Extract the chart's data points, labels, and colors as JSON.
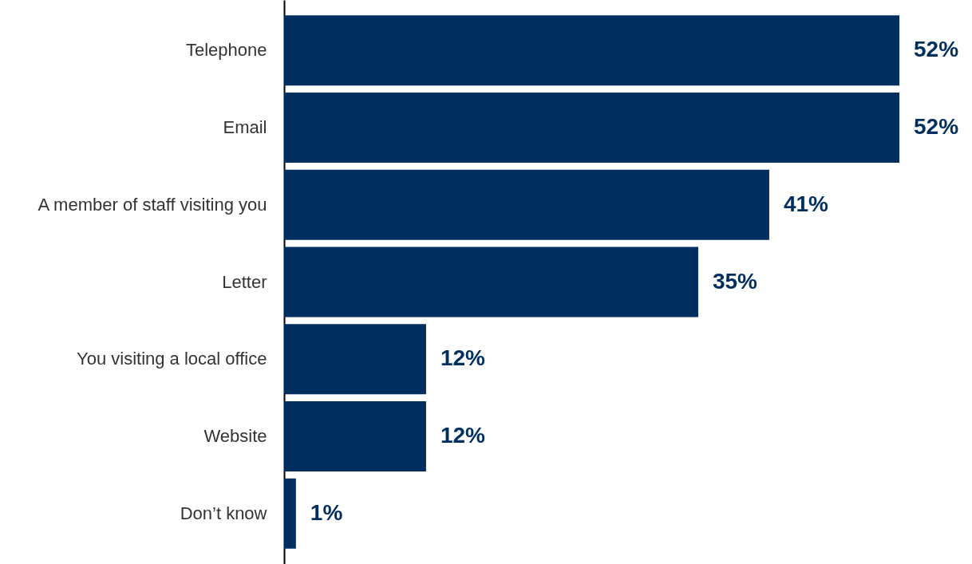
{
  "chart_data": {
    "type": "bar",
    "orientation": "horizontal",
    "categories": [
      "Telephone",
      "Email",
      "A member of staff visiting you",
      "Letter",
      "You visiting a local office",
      "Website",
      "Don’t know"
    ],
    "values": [
      52,
      52,
      41,
      35,
      12,
      12,
      1
    ],
    "value_labels": [
      "52%",
      "52%",
      "41%",
      "35%",
      "12%",
      "12%",
      "1%"
    ],
    "color": "#002f5f",
    "xlim": [
      0,
      58
    ],
    "tick_labels": "y"
  }
}
